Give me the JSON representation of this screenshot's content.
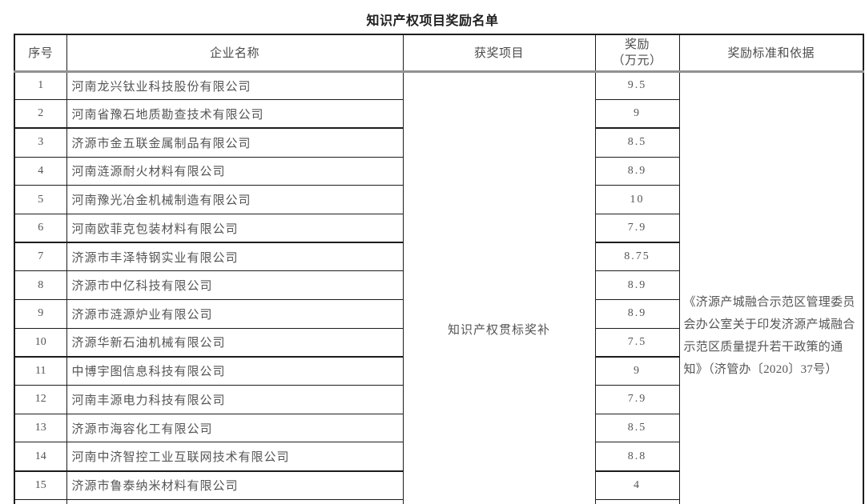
{
  "page": {
    "title": "知识产权项目奖励名单"
  },
  "table": {
    "headers": {
      "index": "序号",
      "company": "企业名称",
      "project": "获奖项目",
      "reward_line1": "奖励",
      "reward_line2": "（万元）",
      "basis": "奖励标准和依据"
    },
    "merged": {
      "project": "知识产权贯标奖补",
      "basis_lines": [
        "《济源产城融合示范区管理委员",
        "会办公室关于印发济源产城融合",
        "示范区质量提升若干政策的通",
        "知》（济管办〔2020〕37号）"
      ]
    },
    "rows": [
      {
        "no": "1",
        "company": "河南龙兴钛业科技股份有限公司",
        "reward": "9.5"
      },
      {
        "no": "2",
        "company": "河南省豫石地质勘查技术有限公司",
        "reward": "9"
      },
      {
        "no": "3",
        "company": "济源市金五联金属制品有限公司",
        "reward": "8.5"
      },
      {
        "no": "4",
        "company": "河南涟源耐火材料有限公司",
        "reward": "8.9"
      },
      {
        "no": "5",
        "company": "河南豫光冶金机械制造有限公司",
        "reward": "10"
      },
      {
        "no": "6",
        "company": "河南欧菲克包装材料有限公司",
        "reward": "7.9"
      },
      {
        "no": "7",
        "company": "济源市丰泽特钢实业有限公司",
        "reward": "8.75"
      },
      {
        "no": "8",
        "company": "济源市中亿科技有限公司",
        "reward": "8.9"
      },
      {
        "no": "9",
        "company": "济源市涟源炉业有限公司",
        "reward": "8.9"
      },
      {
        "no": "10",
        "company": "济源华新石油机械有限公司",
        "reward": "7.5"
      },
      {
        "no": "11",
        "company": "中博宇图信息科技有限公司",
        "reward": "9"
      },
      {
        "no": "12",
        "company": "河南丰源电力科技有限公司",
        "reward": "7.9"
      },
      {
        "no": "13",
        "company": "济源市海容化工有限公司",
        "reward": "8.5"
      },
      {
        "no": "14",
        "company": "河南中济智控工业互联网技术有限公司",
        "reward": "8.8"
      },
      {
        "no": "15",
        "company": "济源市鲁泰纳米材料有限公司",
        "reward": "4"
      }
    ]
  },
  "colors": {
    "text": "#555555",
    "title_text": "#1f1f1f",
    "border": "#1c1c1c",
    "header_separator": "#919191",
    "background": "#ffffff"
  }
}
